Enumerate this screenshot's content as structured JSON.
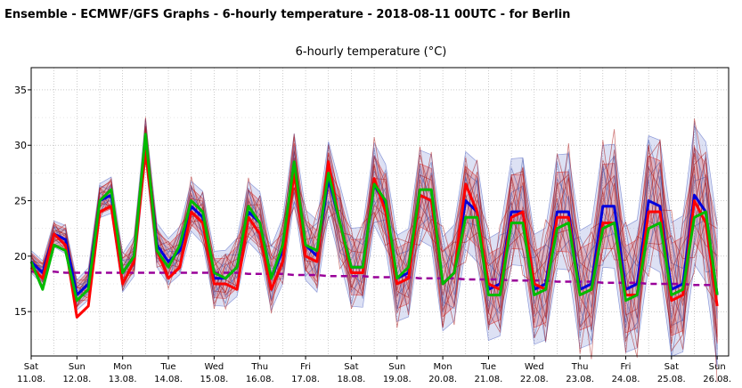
{
  "header": {
    "title": "Ensemble - ECMWF/GFS Graphs - 6-hourly temperature - 2018-08-11 00UTC - for Berlin"
  },
  "chart_data": {
    "type": "line",
    "title": "6-hourly temperature (°C)",
    "xlabel": "",
    "ylabel": "",
    "ylim": [
      11,
      37
    ],
    "yticks": [
      15,
      20,
      25,
      30,
      35
    ],
    "xlim": [
      0,
      61
    ],
    "grid": true,
    "legend": "none",
    "x_tick_labels": [
      {
        "day": "Sat",
        "date": "11.08."
      },
      {
        "day": "Sun",
        "date": "12.08."
      },
      {
        "day": "Mon",
        "date": "13.08."
      },
      {
        "day": "Tue",
        "date": "14.08."
      },
      {
        "day": "Wed",
        "date": "15.08."
      },
      {
        "day": "Thu",
        "date": "16.08."
      },
      {
        "day": "Fri",
        "date": "17.08."
      },
      {
        "day": "Sat",
        "date": "18.08."
      },
      {
        "day": "Sun",
        "date": "19.08."
      },
      {
        "day": "Mon",
        "date": "20.08."
      },
      {
        "day": "Tue",
        "date": "21.08."
      },
      {
        "day": "Wed",
        "date": "22.08."
      },
      {
        "day": "Thu",
        "date": "23.08."
      },
      {
        "day": "Fri",
        "date": "24.08."
      },
      {
        "day": "Sat",
        "date": "25.08."
      },
      {
        "day": "Sun",
        "date": "26.08."
      }
    ],
    "series": [
      {
        "color": "#00bb00",
        "values": [
          19.5,
          17,
          21,
          20.5,
          16,
          17,
          25,
          26,
          18.5,
          20,
          31,
          20.5,
          19,
          21,
          25,
          24,
          18.5,
          18,
          19,
          24.5,
          23,
          18,
          21,
          28.5,
          21,
          20.5,
          27.5,
          23,
          19,
          19,
          26.5,
          25,
          18,
          19,
          26,
          26,
          17.5,
          18.5,
          23.5,
          23.5,
          16.5,
          16.5,
          23,
          23,
          16.5,
          17,
          22.5,
          23,
          16.5,
          17,
          22.5,
          23,
          16,
          16.5,
          22.5,
          23,
          16.5,
          17,
          23.5,
          24,
          16.5
        ]
      },
      {
        "color": "#ff0000",
        "values": [
          19,
          18,
          22,
          21,
          14.5,
          15.5,
          24,
          24.5,
          17.5,
          19.5,
          29.5,
          20.5,
          18,
          19,
          24,
          23,
          17.5,
          17.5,
          17,
          23.5,
          22,
          17,
          19.5,
          27.5,
          20,
          19.5,
          28.5,
          23,
          18.5,
          18.5,
          27,
          24,
          17.5,
          18,
          25.5,
          25,
          17.5,
          18.5,
          26.5,
          24,
          17.5,
          17,
          23.5,
          24,
          17.5,
          17,
          23.5,
          23.5,
          16.5,
          17,
          23,
          23,
          16.5,
          16.5,
          24,
          24,
          16,
          16.5,
          25,
          23,
          15.5
        ]
      },
      {
        "color": "#0000dd",
        "values": [
          19.5,
          18.5,
          22,
          21.5,
          16.5,
          17.5,
          25,
          25.5,
          18.5,
          20,
          30.5,
          21,
          19.5,
          20.5,
          24.5,
          23.5,
          18,
          18,
          19,
          24,
          23,
          18,
          20.5,
          28,
          21,
          20,
          27,
          23,
          19,
          19,
          26.5,
          24.5,
          18,
          18.5,
          25.5,
          25,
          17.5,
          18.5,
          25,
          24,
          17,
          17.5,
          24,
          24,
          17,
          17.5,
          24,
          24,
          17,
          17.5,
          24.5,
          24.5,
          17,
          17.5,
          25,
          24.5,
          17,
          17.5,
          25.5,
          24,
          16.5
        ]
      },
      {
        "color": "#990099",
        "dashed": true,
        "values": [
          18.6,
          18.6,
          18.6,
          18.5,
          18.5,
          18.5,
          18.5,
          18.5,
          18.5,
          18.5,
          18.5,
          18.5,
          18.5,
          18.5,
          18.5,
          18.5,
          18.5,
          18.5,
          18.5,
          18.4,
          18.4,
          18.4,
          18.4,
          18.3,
          18.3,
          18.3,
          18.2,
          18.2,
          18.2,
          18.2,
          18.1,
          18.1,
          18.1,
          18.1,
          18.0,
          18.0,
          18.0,
          18.0,
          17.9,
          17.9,
          17.9,
          17.9,
          17.8,
          17.8,
          17.8,
          17.8,
          17.7,
          17.7,
          17.7,
          17.7,
          17.6,
          17.6,
          17.6,
          17.6,
          17.5,
          17.5,
          17.5,
          17.5,
          17.4,
          17.4,
          17.4
        ]
      }
    ],
    "spread_color_ecmwf": "#dd3333",
    "spread_color_gfs": "#6677cc",
    "mean_color": "#990099",
    "gfs_color": "#00bb00",
    "ecmwf_color": "#ff0000",
    "control_color": "#0000dd"
  }
}
